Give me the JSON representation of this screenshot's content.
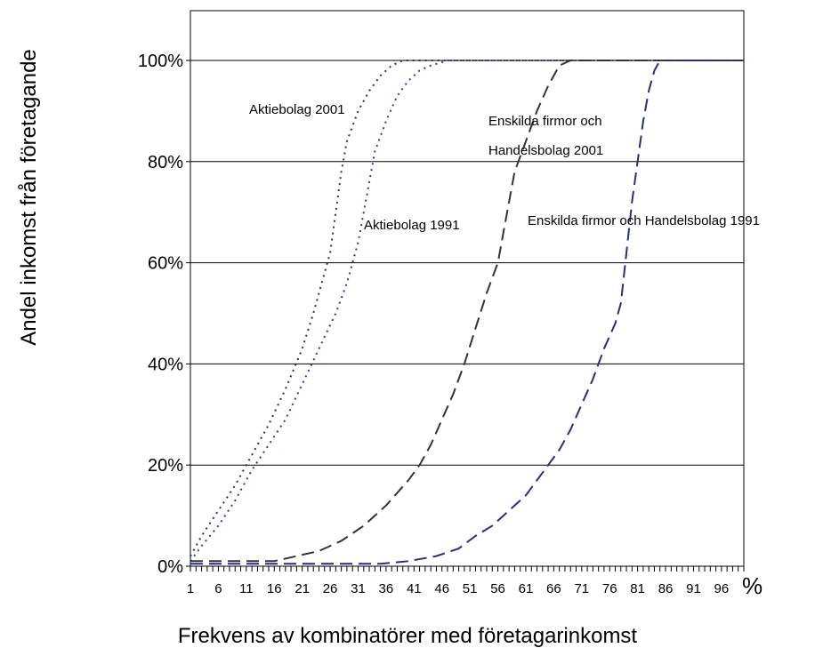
{
  "chart_data": {
    "type": "line",
    "xlabel": "Frekvens av kombinatörer med företagarinkomst",
    "ylabel": "Andel inkomst från företagande",
    "x_unit": "%",
    "xlim": [
      1,
      100
    ],
    "ylim": [
      0,
      100
    ],
    "x_ticks": [
      "1",
      "6",
      "11",
      "16",
      "21",
      "26",
      "31",
      "36",
      "41",
      "46",
      "51",
      "56",
      "61",
      "66",
      "71",
      "76",
      "81",
      "86",
      "91",
      "96"
    ],
    "y_ticks": [
      "0%",
      "20%",
      "40%",
      "60%",
      "80%",
      "100%"
    ],
    "grid": "horizontal",
    "series": [
      {
        "name": "Aktiebolag 2001",
        "color": "#333333",
        "style": "dotted",
        "points": [
          [
            1,
            2
          ],
          [
            3,
            6
          ],
          [
            6,
            11
          ],
          [
            9,
            16
          ],
          [
            12,
            22
          ],
          [
            15,
            28
          ],
          [
            18,
            35
          ],
          [
            21,
            43
          ],
          [
            23,
            50
          ],
          [
            25,
            58
          ],
          [
            26,
            62
          ],
          [
            27,
            70
          ],
          [
            28,
            78
          ],
          [
            29,
            84
          ],
          [
            31,
            90
          ],
          [
            33,
            94
          ],
          [
            35,
            97
          ],
          [
            37,
            99
          ],
          [
            39,
            100
          ],
          [
            44,
            100
          ],
          [
            100,
            100
          ]
        ]
      },
      {
        "name": "Aktiebolag 1991",
        "color": "#3333aa",
        "style": "dotted",
        "points": [
          [
            1,
            1
          ],
          [
            3,
            4
          ],
          [
            6,
            8
          ],
          [
            9,
            13
          ],
          [
            12,
            19
          ],
          [
            15,
            24
          ],
          [
            18,
            29
          ],
          [
            21,
            36
          ],
          [
            24,
            43
          ],
          [
            27,
            50
          ],
          [
            29,
            56
          ],
          [
            31,
            64
          ],
          [
            32,
            70
          ],
          [
            33,
            76
          ],
          [
            34,
            82
          ],
          [
            36,
            88
          ],
          [
            38,
            93
          ],
          [
            40,
            96
          ],
          [
            42,
            98
          ],
          [
            44,
            99
          ],
          [
            47,
            100
          ],
          [
            100,
            100
          ]
        ]
      },
      {
        "name": "Enskilda firmor och Handelsbolag 2001",
        "color": "#333333",
        "style": "dashed",
        "points": [
          [
            1,
            1
          ],
          [
            10,
            1
          ],
          [
            16,
            1
          ],
          [
            20,
            2
          ],
          [
            24,
            3
          ],
          [
            28,
            5
          ],
          [
            32,
            8
          ],
          [
            36,
            12
          ],
          [
            40,
            17
          ],
          [
            42,
            20
          ],
          [
            44,
            24
          ],
          [
            46,
            29
          ],
          [
            48,
            34
          ],
          [
            50,
            40
          ],
          [
            52,
            47
          ],
          [
            54,
            54
          ],
          [
            56,
            60
          ],
          [
            57,
            66
          ],
          [
            58,
            72
          ],
          [
            59,
            78
          ],
          [
            61,
            84
          ],
          [
            63,
            90
          ],
          [
            65,
            95
          ],
          [
            67,
            99
          ],
          [
            69,
            100
          ],
          [
            100,
            100
          ]
        ]
      },
      {
        "name": "Enskilda firmor och Handelsbolag 1991",
        "color": "#2a2a8a",
        "style": "dashed",
        "points": [
          [
            1,
            0.5
          ],
          [
            35,
            0.5
          ],
          [
            40,
            1
          ],
          [
            45,
            2
          ],
          [
            49,
            3.5
          ],
          [
            52,
            6
          ],
          [
            55,
            8
          ],
          [
            58,
            11
          ],
          [
            61,
            14
          ],
          [
            63,
            17
          ],
          [
            65,
            20
          ],
          [
            67,
            23
          ],
          [
            69,
            27
          ],
          [
            71,
            32
          ],
          [
            73,
            37
          ],
          [
            75,
            43
          ],
          [
            77,
            48
          ],
          [
            78,
            52
          ],
          [
            79,
            62
          ],
          [
            80,
            72
          ],
          [
            81,
            80
          ],
          [
            82,
            88
          ],
          [
            83,
            94
          ],
          [
            84,
            98
          ],
          [
            85,
            100
          ],
          [
            100,
            100
          ]
        ]
      }
    ],
    "annotations": [
      {
        "text": "Aktiebolag 2001"
      },
      {
        "text": "Aktiebolag 1991"
      },
      {
        "text": "Enskilda firmor och"
      },
      {
        "text": "Handelsbolag 2001"
      },
      {
        "text": "Enskilda firmor och Handelsbolag 1991"
      }
    ]
  }
}
